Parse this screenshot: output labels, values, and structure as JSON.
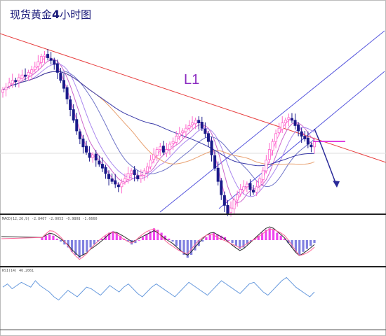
{
  "title_prefix": "现货黄金",
  "title_number": "4",
  "title_suffix": "小时图",
  "chart_data": [
    {
      "type": "candlestick",
      "panel": "main",
      "title": "现货黄金4小时图",
      "annotations": [
        {
          "label": "L1"
        }
      ],
      "colors": {
        "up_candle": "#ff66cc",
        "down_candle": "#1a1a8a",
        "resistance_line": "#e84040",
        "channel_lines": "#5555dd",
        "forecast_arrow": "#2a2a99",
        "target_level": "#e040e0"
      },
      "grid": false,
      "candles_close": [
        1,
        3,
        6,
        8,
        7,
        10,
        12,
        11,
        14,
        16,
        18,
        22,
        26,
        27,
        25,
        23,
        20,
        14,
        8,
        2,
        -6,
        -14,
        -22,
        -30,
        -36,
        -42,
        -46,
        -50,
        -48,
        -52,
        -55,
        -58,
        -62,
        -66,
        -68,
        -70,
        -72,
        -69,
        -66,
        -62,
        -60,
        -63,
        -66,
        -64,
        -60,
        -57,
        -52,
        -48,
        -44,
        -42,
        -46,
        -44,
        -40,
        -38,
        -34,
        -32,
        -30,
        -28,
        -26,
        -24,
        -22,
        -24,
        -28,
        -32,
        -38,
        -48,
        -58,
        -68,
        -78,
        -86,
        -92,
        -88,
        -82,
        -78,
        -74,
        -72,
        -70,
        -74,
        -76,
        -72,
        -66,
        -60,
        -52,
        -44,
        -38,
        -32,
        -28,
        -24,
        -22,
        -20,
        -22,
        -26,
        -30,
        -34,
        -36,
        -40,
        -42,
        -38
      ]
    },
    {
      "type": "line",
      "panel": "MACD",
      "legend": "MACD(12,26,9) -2.8467 -2.0053 -0.9808 -1.6660",
      "series": [
        {
          "name": "histogram",
          "color": "#ee44ee",
          "values": [
            2,
            3,
            4,
            3,
            1,
            -1,
            -3,
            -5,
            -8,
            -10,
            -12,
            -10,
            -8,
            -5,
            -3,
            -1,
            1,
            3,
            5,
            6,
            5,
            3,
            1,
            -1,
            -3,
            -2,
            0,
            2,
            4,
            6,
            8,
            7,
            5,
            3,
            1,
            -1,
            -4,
            -7,
            -10,
            -12,
            -10,
            -7,
            -4,
            -1,
            2,
            4,
            5,
            4,
            3,
            2,
            0,
            -2,
            -4,
            -6,
            -5,
            -3,
            -1,
            1,
            3,
            5,
            7,
            8,
            7,
            5,
            3,
            1,
            -2,
            -5,
            -8,
            -10,
            -8,
            -6,
            -4,
            -2
          ]
        },
        {
          "name": "signal",
          "color": "#2a2a2a"
        },
        {
          "name": "macd",
          "color": "#ff6699"
        }
      ]
    },
    {
      "type": "line",
      "panel": "RSI",
      "legend": "RSI(14) 46.2061",
      "series": [
        {
          "name": "RSI",
          "color": "#6699dd",
          "values": [
            52,
            56,
            50,
            54,
            58,
            55,
            52,
            60,
            54,
            50,
            46,
            40,
            36,
            42,
            48,
            44,
            40,
            46,
            52,
            50,
            46,
            42,
            48,
            54,
            50,
            46,
            52,
            56,
            50,
            44,
            40,
            46,
            52,
            56,
            52,
            48,
            44,
            40,
            46,
            52,
            58,
            54,
            50,
            46,
            42,
            48,
            54,
            60,
            56,
            52,
            48,
            44,
            50,
            56,
            58,
            52,
            46,
            42,
            48,
            54,
            60,
            64,
            58,
            52,
            48,
            44,
            40,
            46
          ]
        }
      ]
    }
  ]
}
